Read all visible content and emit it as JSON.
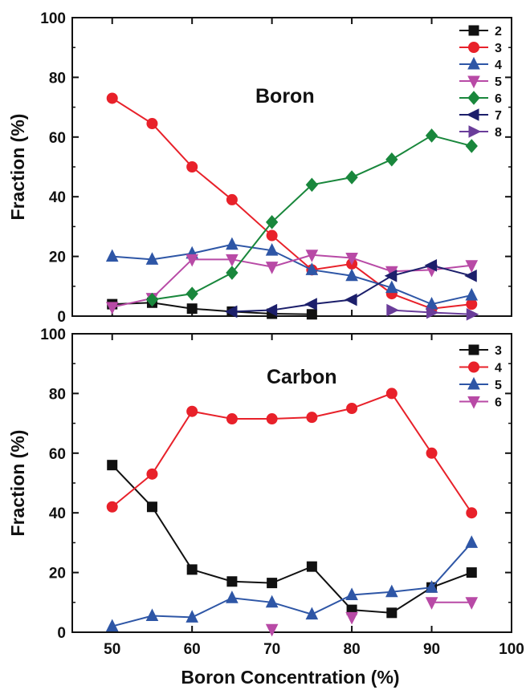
{
  "chart_data": [
    {
      "type": "line",
      "annotation": "Boron",
      "xlabel": "",
      "ylabel": "Fraction (%)",
      "xlim": [
        45,
        100
      ],
      "ylim": [
        0,
        100
      ],
      "xticks": [
        50,
        60,
        70,
        80,
        90,
        100
      ],
      "yticks": [
        0,
        20,
        40,
        60,
        80,
        100
      ],
      "legend_position": "top-right",
      "series": [
        {
          "name": "2",
          "color": "#111111",
          "marker": "square",
          "x": [
            50,
            55,
            60,
            65,
            70,
            75
          ],
          "y": [
            4,
            4.5,
            2.5,
            1.5,
            0.8,
            0.6
          ]
        },
        {
          "name": "3",
          "color": "#e8212a",
          "marker": "circle",
          "x": [
            50,
            55,
            60,
            65,
            70,
            75,
            80,
            85,
            90,
            95
          ],
          "y": [
            73,
            64.5,
            50,
            39,
            27,
            15.5,
            17.5,
            7.5,
            2.5,
            4
          ]
        },
        {
          "name": "4",
          "color": "#2e56a6",
          "marker": "triangle-up",
          "x": [
            50,
            55,
            60,
            65,
            70,
            75,
            80,
            85,
            90,
            95
          ],
          "y": [
            20,
            19,
            21,
            24,
            22,
            15.5,
            13.5,
            9.5,
            4,
            7
          ]
        },
        {
          "name": "5",
          "color": "#b84aa6",
          "marker": "triangle-down",
          "x": [
            50,
            55,
            60,
            65,
            70,
            75,
            80,
            85,
            90,
            95
          ],
          "y": [
            3,
            6,
            19,
            19,
            16.5,
            20.5,
            19.5,
            15,
            15.5,
            17
          ]
        },
        {
          "name": "6",
          "color": "#19873c",
          "marker": "diamond",
          "x": [
            55,
            60,
            65,
            70,
            75,
            80,
            85,
            90,
            95
          ],
          "y": [
            5.5,
            7.5,
            14.5,
            31.5,
            44,
            46.5,
            52.5,
            60.5,
            57
          ]
        },
        {
          "name": "7",
          "color": "#1c1f6b",
          "marker": "triangle-left",
          "x": [
            65,
            70,
            75,
            80,
            85,
            90,
            95
          ],
          "y": [
            1.5,
            2,
            4,
            5.5,
            13.5,
            17,
            13.5
          ]
        },
        {
          "name": "8",
          "color": "#6a3d9a",
          "marker": "triangle-right",
          "x": [
            85,
            90,
            95
          ],
          "y": [
            2,
            1.2,
            0.6
          ]
        }
      ]
    },
    {
      "type": "line",
      "annotation": "Carbon",
      "xlabel": "Boron Concentration (%)",
      "ylabel": "Fraction (%)",
      "xlim": [
        45,
        100
      ],
      "ylim": [
        0,
        100
      ],
      "xticks": [
        50,
        60,
        70,
        80,
        90,
        100
      ],
      "yticks": [
        0,
        20,
        40,
        60,
        80,
        100
      ],
      "legend_position": "top-right",
      "series": [
        {
          "name": "3",
          "color": "#111111",
          "marker": "square",
          "x": [
            50,
            55,
            60,
            65,
            70,
            75,
            80,
            85,
            90,
            95
          ],
          "y": [
            56,
            42,
            21,
            17,
            16.5,
            22,
            7.5,
            6.5,
            15,
            20
          ]
        },
        {
          "name": "4",
          "color": "#e8212a",
          "marker": "circle",
          "x": [
            50,
            55,
            60,
            65,
            70,
            75,
            80,
            85,
            90,
            95
          ],
          "y": [
            42,
            53,
            74,
            71.5,
            71.5,
            72,
            75,
            80,
            60,
            40
          ]
        },
        {
          "name": "5",
          "color": "#2e56a6",
          "marker": "triangle-up",
          "x": [
            50,
            55,
            60,
            65,
            70,
            75,
            80,
            85,
            90,
            95
          ],
          "y": [
            2,
            5.5,
            5,
            11.5,
            10,
            6,
            12.5,
            13.5,
            15,
            30
          ]
        },
        {
          "name": "6",
          "color": "#b84aa6",
          "marker": "triangle-down",
          "segments": [
            {
              "x": [
                70
              ],
              "y": [
                1
              ]
            },
            {
              "x": [
                80
              ],
              "y": [
                5
              ]
            },
            {
              "x": [
                90,
                95
              ],
              "y": [
                10,
                10
              ]
            }
          ]
        }
      ]
    }
  ]
}
